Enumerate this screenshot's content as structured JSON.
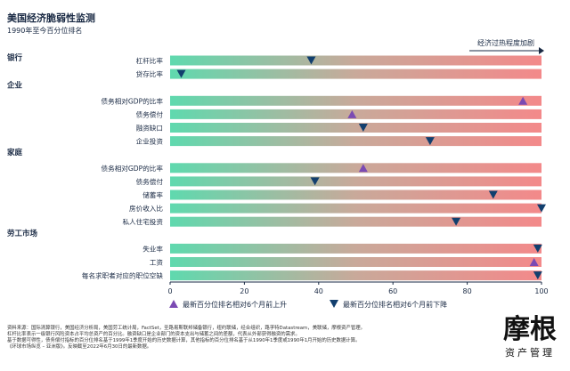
{
  "chart_data": {
    "type": "dot-on-gradient-bar",
    "title": "美国经济脆弱性监测",
    "subtitle": "1990年至今百分位排名",
    "arrow_label": "经济过热程度加剧",
    "xlim": [
      0,
      100
    ],
    "xticks": [
      0,
      20,
      40,
      60,
      80,
      100
    ],
    "colors": {
      "low": "#5fd9ae",
      "mid": "#c9a99a",
      "high": "#f3898a",
      "up": "#7b4ab3",
      "down": "#123f6e"
    },
    "groups": [
      {
        "name": "银行",
        "rows": [
          {
            "label": "杠杆比率",
            "value": 38,
            "direction": "down"
          },
          {
            "label": "贷存比率",
            "value": 3,
            "direction": "down"
          }
        ]
      },
      {
        "name": "企业",
        "rows": [
          {
            "label": "债务相对GDP的比率",
            "value": 95,
            "direction": "up"
          },
          {
            "label": "债务偿付",
            "value": 49,
            "direction": "up"
          },
          {
            "label": "融资缺口",
            "value": 52,
            "direction": "down"
          },
          {
            "label": "企业投资",
            "value": 70,
            "direction": "down"
          }
        ]
      },
      {
        "name": "家庭",
        "rows": [
          {
            "label": "债务相对GDP的比率",
            "value": 52,
            "direction": "up"
          },
          {
            "label": "债务偿付",
            "value": 39,
            "direction": "down"
          },
          {
            "label": "储蓄率",
            "value": 87,
            "direction": "down"
          },
          {
            "label": "房价收入比",
            "value": 100,
            "direction": "down"
          },
          {
            "label": "私人住宅投资",
            "value": 77,
            "direction": "down"
          }
        ]
      },
      {
        "name": "劳工市场",
        "rows": [
          {
            "label": "失业率",
            "value": 99,
            "direction": "down"
          },
          {
            "label": "工资",
            "value": 98,
            "direction": "up"
          },
          {
            "label": "每名求职者对应的职位空缺",
            "value": 99,
            "direction": "down"
          }
        ]
      }
    ],
    "legend": {
      "up": "最新百分位排名相对6个月前上升",
      "down": "最新百分位排名相对6个月前下降"
    }
  },
  "footnotes": [
    "资料来源：国际清算银行，美国经济分析局，美国劳工统计局，FactSet，圣路易斯联邦储备银行，纽约联储，经合组织，路孚特Datastream，美联储，摩根资产管理。",
    "杠杆比率表示一级银行风险资本占平均总资产的百分比。融资缺口是企业部门的资本支出与储蓄之间的差额，代表从外部获得融资的需求。",
    "基于数据可得性，债务偿付指标的百分位排名基于1999年1季度开始的历史数据计算，其他指标的百分位排名基于从1990年1季度或1990年1月开始的历史数据计算。",
    "《环球市场纵览 – 亚洲版》。反映截至2022年6月30日的最新数据。"
  ],
  "logo": {
    "name": "摩根",
    "sub": "资产管理"
  }
}
